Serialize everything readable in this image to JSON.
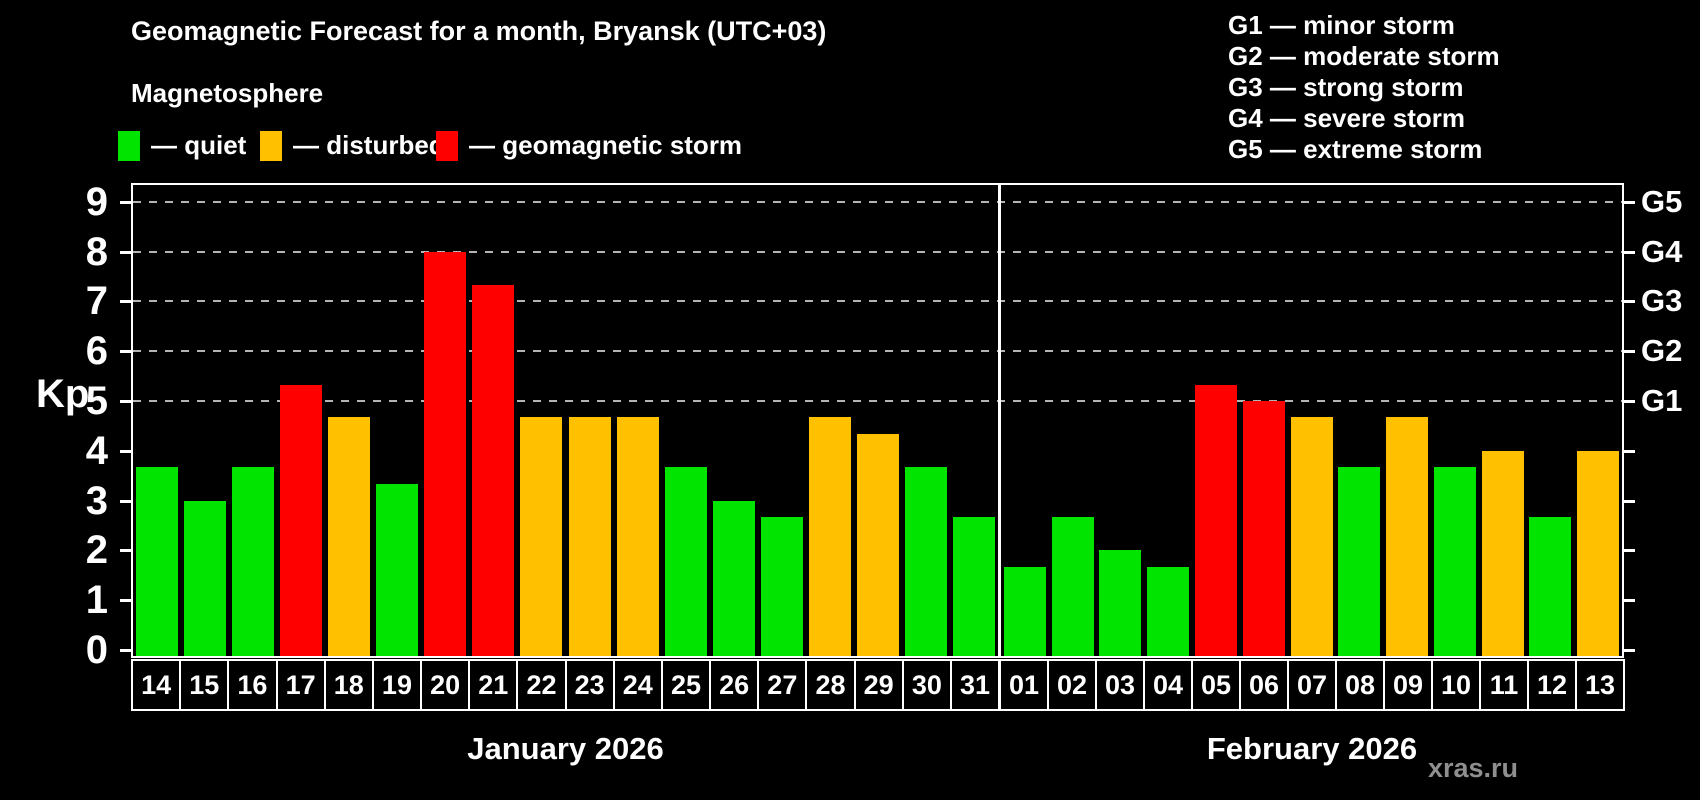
{
  "title": "Geomagnetic Forecast for a month, Bryansk (UTC+03)",
  "subtitle": "Magnetosphere",
  "legend": {
    "items": [
      {
        "name": "quiet",
        "label": "— quiet",
        "color": "#00e400"
      },
      {
        "name": "disturbed",
        "label": "— disturbed",
        "color": "#ffc000"
      },
      {
        "name": "storm",
        "label": "— geomagnetic storm",
        "color": "#ff0000"
      }
    ]
  },
  "storm_scale": [
    "G1 — minor storm",
    "G2 — moderate storm",
    "G3 — strong storm",
    "G4 — severe storm",
    "G5 — extreme storm"
  ],
  "watermark": "xras.ru",
  "colors": {
    "quiet": "#00e400",
    "disturbed": "#ffc000",
    "storm": "#ff0000"
  },
  "chart_data": {
    "type": "bar",
    "title": "Geomagnetic Forecast for a month, Bryansk (UTC+03)",
    "ylabel": "Kp",
    "ylim": [
      -0.12,
      9.4
    ],
    "yticks": [
      "0",
      "1",
      "2",
      "3",
      "4",
      "5",
      "6",
      "7",
      "8",
      "9"
    ],
    "gridlines_at": [
      5,
      6,
      7,
      8,
      9
    ],
    "grid": "dashed horizontal at G levels only",
    "legend_position": "top-left",
    "right_axis_labels": [
      {
        "value": 5,
        "label": "G1"
      },
      {
        "value": 6,
        "label": "G2"
      },
      {
        "value": 7,
        "label": "G3"
      },
      {
        "value": 8,
        "label": "G4"
      },
      {
        "value": 9,
        "label": "G5"
      }
    ],
    "months": [
      {
        "label": "January 2026",
        "days": [
          {
            "day": "14",
            "kp": 3.67,
            "level": "quiet"
          },
          {
            "day": "15",
            "kp": 3.0,
            "level": "quiet"
          },
          {
            "day": "16",
            "kp": 3.67,
            "level": "quiet"
          },
          {
            "day": "17",
            "kp": 5.33,
            "level": "storm"
          },
          {
            "day": "18",
            "kp": 4.67,
            "level": "disturbed"
          },
          {
            "day": "19",
            "kp": 3.33,
            "level": "quiet"
          },
          {
            "day": "20",
            "kp": 8.0,
            "level": "storm"
          },
          {
            "day": "21",
            "kp": 7.33,
            "level": "storm"
          },
          {
            "day": "22",
            "kp": 4.67,
            "level": "disturbed"
          },
          {
            "day": "23",
            "kp": 4.67,
            "level": "disturbed"
          },
          {
            "day": "24",
            "kp": 4.67,
            "level": "disturbed"
          },
          {
            "day": "25",
            "kp": 3.67,
            "level": "quiet"
          },
          {
            "day": "26",
            "kp": 3.0,
            "level": "quiet"
          },
          {
            "day": "27",
            "kp": 2.67,
            "level": "quiet"
          },
          {
            "day": "28",
            "kp": 4.67,
            "level": "disturbed"
          },
          {
            "day": "29",
            "kp": 4.33,
            "level": "disturbed"
          },
          {
            "day": "30",
            "kp": 3.67,
            "level": "quiet"
          },
          {
            "day": "31",
            "kp": 2.67,
            "level": "quiet"
          }
        ]
      },
      {
        "label": "February 2026",
        "days": [
          {
            "day": "01",
            "kp": 1.67,
            "level": "quiet"
          },
          {
            "day": "02",
            "kp": 2.67,
            "level": "quiet"
          },
          {
            "day": "03",
            "kp": 2.0,
            "level": "quiet"
          },
          {
            "day": "04",
            "kp": 1.67,
            "level": "quiet"
          },
          {
            "day": "05",
            "kp": 5.33,
            "level": "storm"
          },
          {
            "day": "06",
            "kp": 5.0,
            "level": "storm"
          },
          {
            "day": "07",
            "kp": 4.67,
            "level": "disturbed"
          },
          {
            "day": "08",
            "kp": 3.67,
            "level": "quiet"
          },
          {
            "day": "09",
            "kp": 4.67,
            "level": "disturbed"
          },
          {
            "day": "10",
            "kp": 3.67,
            "level": "quiet"
          },
          {
            "day": "11",
            "kp": 4.0,
            "level": "disturbed"
          },
          {
            "day": "12",
            "kp": 2.67,
            "level": "quiet"
          },
          {
            "day": "13",
            "kp": 4.0,
            "level": "disturbed"
          }
        ]
      }
    ]
  }
}
